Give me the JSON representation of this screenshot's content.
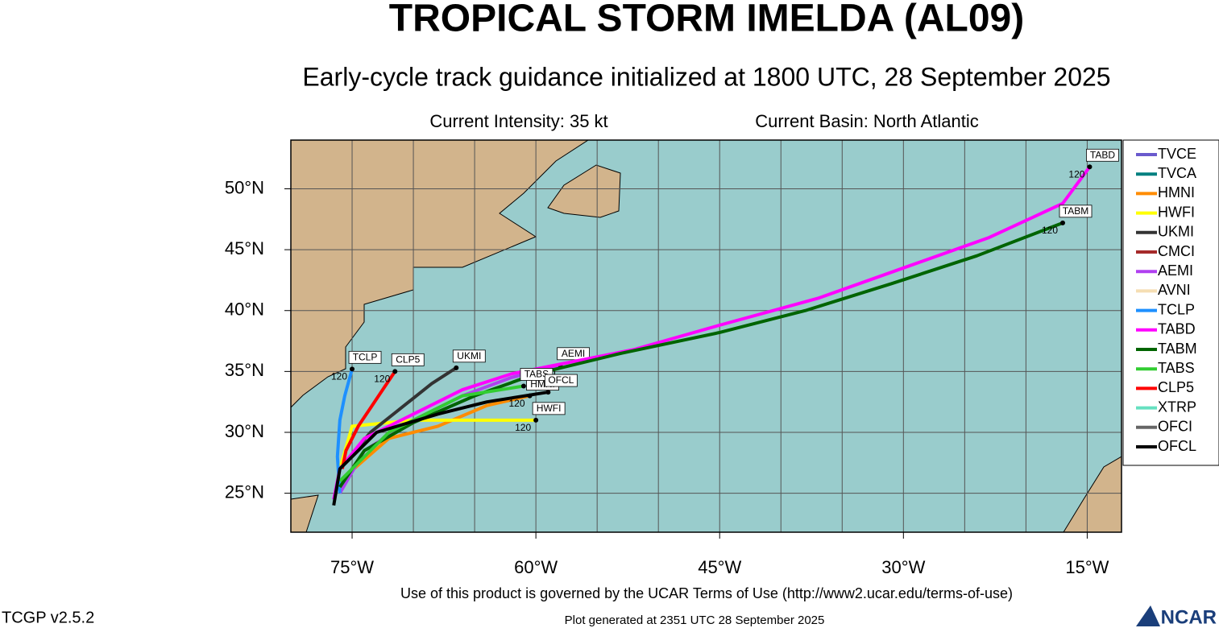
{
  "chart_data": {
    "type": "map",
    "title": "TROPICAL STORM IMELDA (AL09)",
    "subtitle": "Early-cycle track guidance initialized at 1800 UTC, 28 September 2025",
    "intensity": "Current Intensity: 35 kt",
    "basin": "Current Basin: North Atlantic",
    "xlim": [
      -80,
      -12.2
    ],
    "ylim": [
      21.8,
      54
    ],
    "xticks": [
      {
        "value": -75,
        "label": "75°W"
      },
      {
        "value": -60,
        "label": "60°W"
      },
      {
        "value": -45,
        "label": "45°W"
      },
      {
        "value": -30,
        "label": "30°W"
      },
      {
        "value": -15,
        "label": "15°W"
      }
    ],
    "xgrid": [
      -75,
      -70,
      -65,
      -60,
      -55,
      -50,
      -45,
      -40,
      -35,
      -30,
      -25,
      -20,
      -15
    ],
    "yticks": [
      {
        "value": 25,
        "label": "25°N"
      },
      {
        "value": 30,
        "label": "30°N"
      },
      {
        "value": 35,
        "label": "35°N"
      },
      {
        "value": 40,
        "label": "40°N"
      },
      {
        "value": 45,
        "label": "45°N"
      },
      {
        "value": 50,
        "label": "50°N"
      }
    ],
    "grid": true,
    "legend": "right",
    "series": [
      {
        "name": "TVCE",
        "color": "#6a5acd"
      },
      {
        "name": "TVCA",
        "color": "#008080"
      },
      {
        "name": "HMNI",
        "color": "#ff8c00",
        "lon": [
          -76,
          -72,
          -68,
          -64,
          -60.5
        ],
        "lat": [
          26,
          29.5,
          30.5,
          32.2,
          33
        ],
        "end_hour": "120"
      },
      {
        "name": "HWFI",
        "color": "#ffff00",
        "lon": [
          -76,
          -75,
          -70,
          -64,
          -60
        ],
        "lat": [
          27,
          30.5,
          31,
          31,
          31
        ],
        "end_hour": "120"
      },
      {
        "name": "UKMI",
        "color": "#333333",
        "lon": [
          -76,
          -73.5,
          -71,
          -68.5,
          -66.5
        ],
        "lat": [
          27,
          30,
          32,
          34,
          35.3
        ]
      },
      {
        "name": "CMCI",
        "color": "#a52a2a"
      },
      {
        "name": "AEMI",
        "color": "#b040f0",
        "lon": [
          -76,
          -74,
          -70,
          -66,
          -62,
          -58
        ],
        "lat": [
          25,
          28.5,
          31,
          33,
          34.5,
          35.5
        ],
        "end_hour": "120"
      },
      {
        "name": "AVNI",
        "color": "#f5deb3"
      },
      {
        "name": "TCLP",
        "color": "#1e90ff",
        "lon": [
          -76,
          -76.2,
          -76,
          -75.6,
          -75
        ],
        "lat": [
          25,
          28,
          31,
          33,
          35.2
        ],
        "end_hour": "120"
      },
      {
        "name": "TABD",
        "color": "#ff00ff",
        "lon": [
          -76.5,
          -76,
          -74,
          -70,
          -66,
          -62,
          -57,
          -52,
          -45,
          -37,
          -30,
          -23,
          -17,
          -14.8
        ],
        "lat": [
          24.5,
          27,
          29.5,
          31.5,
          33.5,
          34.8,
          35.8,
          36.8,
          38.8,
          41,
          43.5,
          46,
          48.8,
          51.8
        ],
        "end_hour": "120"
      },
      {
        "name": "TABM",
        "color": "#006400",
        "lon": [
          -76,
          -74,
          -70,
          -65,
          -60,
          -53,
          -45,
          -38,
          -31,
          -24,
          -17
        ],
        "lat": [
          25.5,
          28.5,
          30.8,
          33,
          34.8,
          36.5,
          38.2,
          40,
          42.2,
          44.5,
          47.2
        ],
        "end_hour": "120"
      },
      {
        "name": "TABS",
        "color": "#32cd32",
        "lon": [
          -76,
          -72,
          -66,
          -61
        ],
        "lat": [
          26,
          30,
          33,
          33.8
        ]
      },
      {
        "name": "CLP5",
        "color": "#ff0000",
        "lon": [
          -75.8,
          -75.5,
          -74.5,
          -73.5,
          -72.5,
          -71.5
        ],
        "lat": [
          27,
          28.5,
          30.5,
          32,
          33.5,
          35
        ],
        "end_hour": "120"
      },
      {
        "name": "XTRP",
        "color": "#66e0c0"
      },
      {
        "name": "OFCI",
        "color": "#666666"
      },
      {
        "name": "OFCL",
        "color": "#000000",
        "lon": [
          -76.5,
          -76,
          -73,
          -68,
          -64,
          -59
        ],
        "lat": [
          24,
          27,
          30,
          31.5,
          32.5,
          33.3
        ]
      }
    ],
    "terms": "Use of this product is governed by the UCAR Terms of Use (http://www2.ucar.edu/terms-of-use)",
    "version": "TCGP v2.5.2",
    "generated": "Plot generated at 2351 UTC   28 September 2025",
    "logo": "NCAR"
  }
}
